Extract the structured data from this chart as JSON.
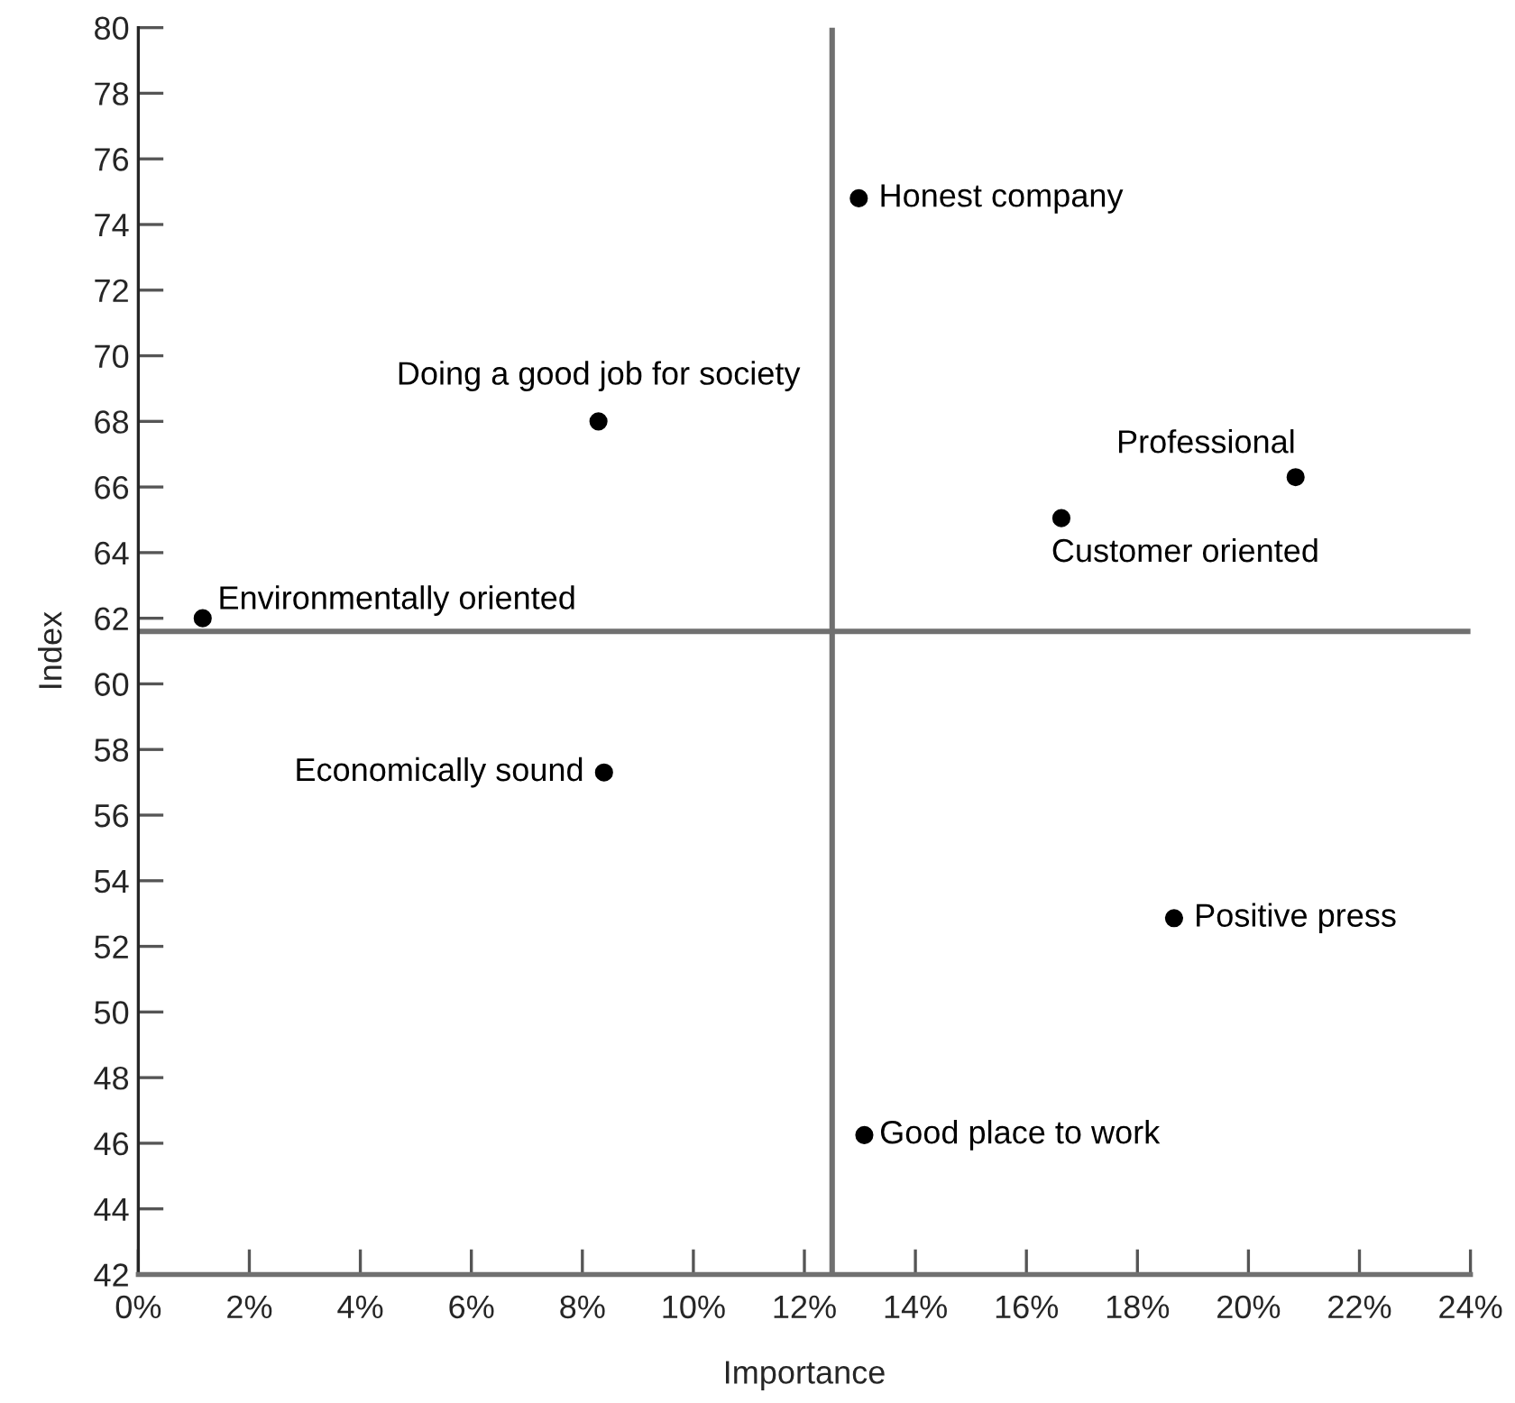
{
  "chart_data": {
    "type": "scatter",
    "xlabel": "Importance",
    "ylabel": "Index",
    "x": [
      1.16,
      8.29,
      12.98,
      20.85,
      16.63,
      8.39,
      18.66,
      13.08
    ],
    "series": [
      {
        "color": "#000000",
        "values": [
          62.0,
          68.0,
          74.8,
          66.3,
          65.05,
          57.3,
          52.86,
          46.25
        ],
        "value_labels": [
          "Environmentally oriented",
          "Doing a good job for society",
          "Honest company",
          "Professional",
          "Customer oriented",
          "Economically sound",
          "Positive press",
          "Good place to work"
        ]
      }
    ],
    "xlim": [
      0,
      24
    ],
    "xticks": [
      {
        "value": 0,
        "label": "0%"
      },
      {
        "value": 2,
        "label": "2%"
      },
      {
        "value": 4,
        "label": "4%"
      },
      {
        "value": 6,
        "label": "6%"
      },
      {
        "value": 8,
        "label": "8%"
      },
      {
        "value": 10,
        "label": "10%"
      },
      {
        "value": 12,
        "label": "12%"
      },
      {
        "value": 14,
        "label": "14%"
      },
      {
        "value": 16,
        "label": "16%"
      },
      {
        "value": 18,
        "label": "18%"
      },
      {
        "value": 20,
        "label": "20%"
      },
      {
        "value": 22,
        "label": "22%"
      },
      {
        "value": 24,
        "label": "24%"
      }
    ],
    "ylim": [
      42,
      80
    ],
    "yticks": [
      42,
      44,
      46,
      48,
      50,
      52,
      54,
      56,
      58,
      60,
      62,
      64,
      66,
      68,
      70,
      72,
      74,
      76,
      78,
      80
    ],
    "ref_lines": [
      {
        "axis": "x",
        "value": 12.5,
        "color": "#707070"
      },
      {
        "axis": "y",
        "value": 61.6,
        "color": "#707070"
      }
    ],
    "marker": "circle",
    "grid": false,
    "legend": false
  }
}
